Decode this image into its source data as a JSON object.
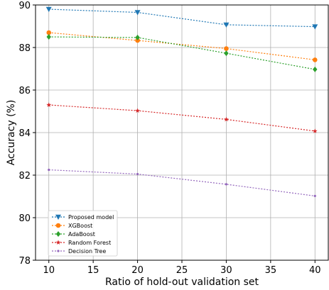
{
  "chart_data": {
    "type": "line",
    "xlabel": "Ratio of hold-out validation set",
    "ylabel": "Accuracy (%)",
    "x": [
      10,
      20,
      30,
      40
    ],
    "xlim": [
      8.5,
      41.5
    ],
    "ylim": [
      78,
      90
    ],
    "xticks": [
      10,
      15,
      20,
      25,
      30,
      35,
      40
    ],
    "yticks": [
      78,
      80,
      82,
      84,
      86,
      88,
      90
    ],
    "grid": true,
    "legend_position": "bottom-left",
    "series": [
      {
        "name": "Proposed model",
        "values": [
          89.8,
          89.65,
          89.07,
          88.98
        ],
        "color": "#1f77b4",
        "marker": "triangle-down"
      },
      {
        "name": "XGBoost",
        "values": [
          88.7,
          88.33,
          87.95,
          87.42
        ],
        "color": "#ff7f0e",
        "marker": "circle"
      },
      {
        "name": "AdaBoost",
        "values": [
          88.5,
          88.47,
          87.73,
          86.97
        ],
        "color": "#2ca02c",
        "marker": "diamond"
      },
      {
        "name": "Random Forest",
        "values": [
          85.3,
          85.03,
          84.62,
          84.07
        ],
        "color": "#d62728",
        "marker": "star"
      },
      {
        "name": "Decision Tree",
        "values": [
          82.25,
          82.05,
          81.57,
          81.02
        ],
        "color": "#9467bd",
        "marker": "dot"
      }
    ]
  }
}
